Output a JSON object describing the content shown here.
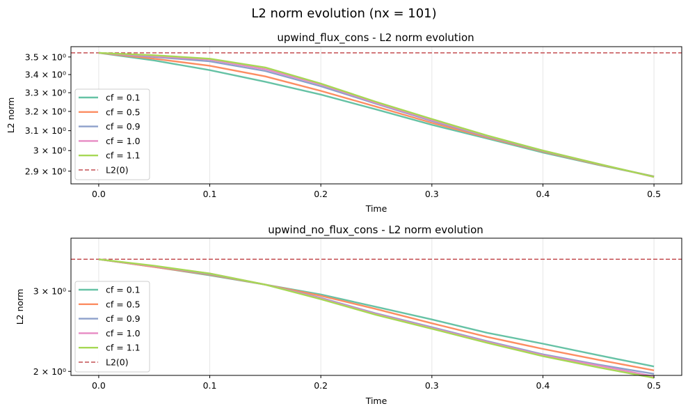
{
  "suptitle": "L2 norm evolution (nx = 101)",
  "colors": {
    "cf_0.1": "#66c2a5",
    "cf_0.5": "#fc8d62",
    "cf_0.9": "#8da0cb",
    "cf_1.0": "#e78ac3",
    "cf_1.1": "#a6d854",
    "ref": "#c44e52"
  },
  "chart_data": [
    {
      "type": "line",
      "title": "upwind_flux_cons - L2 norm evolution",
      "xlabel": "Time",
      "ylabel": "L2 norm",
      "yscale": "log",
      "xlim": [
        -0.025,
        0.525
      ],
      "ylim": [
        2.84,
        3.56
      ],
      "grid": "x-only",
      "legend_position": "lower-left",
      "x_ticks": [
        "0.0",
        "0.1",
        "0.2",
        "0.3",
        "0.4",
        "0.5"
      ],
      "x_tick_values": [
        0,
        0.1,
        0.2,
        0.3,
        0.4,
        0.5
      ],
      "y_ticks": [
        "2.9 × 10⁰",
        "3 × 10⁰",
        "3.1 × 10⁰",
        "3.2 × 10⁰",
        "3.3 × 10⁰",
        "3.4 × 10⁰",
        "3.5 × 10⁰"
      ],
      "y_tick_values": [
        2.9,
        3.0,
        3.1,
        3.2,
        3.3,
        3.4,
        3.5
      ],
      "reference": {
        "name": "L2(0)",
        "value": 3.524
      },
      "series": [
        {
          "name": "cf = 0.1",
          "x": [
            0,
            0.05,
            0.1,
            0.15,
            0.2,
            0.25,
            0.3,
            0.35,
            0.4,
            0.45,
            0.5
          ],
          "values": [
            3.524,
            3.48,
            3.425,
            3.36,
            3.29,
            3.21,
            3.13,
            3.06,
            2.99,
            2.93,
            2.875
          ]
        },
        {
          "name": "cf = 0.5",
          "x": [
            0,
            0.05,
            0.1,
            0.15,
            0.2,
            0.25,
            0.3,
            0.35,
            0.4,
            0.45,
            0.5
          ],
          "values": [
            3.524,
            3.49,
            3.45,
            3.39,
            3.31,
            3.225,
            3.14,
            3.065,
            2.995,
            2.932,
            2.875
          ]
        },
        {
          "name": "cf = 0.9",
          "x": [
            0,
            0.05,
            0.1,
            0.15,
            0.2,
            0.25,
            0.3,
            0.35,
            0.4,
            0.45,
            0.5
          ],
          "values": [
            3.524,
            3.5,
            3.475,
            3.42,
            3.335,
            3.24,
            3.15,
            3.07,
            2.998,
            2.934,
            2.874
          ]
        },
        {
          "name": "cf = 1.0",
          "x": [
            0,
            0.05,
            0.1,
            0.15,
            0.2,
            0.25,
            0.3,
            0.35,
            0.4,
            0.45,
            0.5
          ],
          "values": [
            3.524,
            3.505,
            3.485,
            3.43,
            3.345,
            3.245,
            3.155,
            3.073,
            3.0,
            2.935,
            2.872
          ]
        },
        {
          "name": "cf = 1.1",
          "x": [
            0,
            0.05,
            0.1,
            0.15,
            0.2,
            0.25,
            0.3,
            0.35,
            0.4,
            0.45,
            0.5
          ],
          "values": [
            3.524,
            3.51,
            3.49,
            3.44,
            3.35,
            3.25,
            3.16,
            3.075,
            3.0,
            2.935,
            2.873
          ]
        }
      ]
    },
    {
      "type": "line",
      "title": "upwind_no_flux_cons - L2 norm evolution",
      "xlabel": "Time",
      "ylabel": "L2 norm",
      "yscale": "log",
      "xlim": [
        -0.025,
        0.525
      ],
      "ylim": [
        1.96,
        3.92
      ],
      "grid": "x-only",
      "legend_position": "lower-left",
      "x_ticks": [
        "0.0",
        "0.1",
        "0.2",
        "0.3",
        "0.4",
        "0.5"
      ],
      "x_tick_values": [
        0,
        0.1,
        0.2,
        0.3,
        0.4,
        0.5
      ],
      "y_ticks": [
        "2 × 10⁰",
        "3 × 10⁰"
      ],
      "y_tick_values": [
        2,
        3
      ],
      "reference": {
        "name": "L2(0)",
        "value": 3.524
      },
      "series": [
        {
          "name": "cf = 0.1",
          "x": [
            0,
            0.05,
            0.1,
            0.15,
            0.2,
            0.25,
            0.3,
            0.35,
            0.4,
            0.45,
            0.5
          ],
          "values": [
            3.524,
            3.39,
            3.25,
            3.1,
            2.95,
            2.77,
            2.6,
            2.43,
            2.3,
            2.17,
            2.05
          ]
        },
        {
          "name": "cf = 0.5",
          "x": [
            0,
            0.05,
            0.1,
            0.15,
            0.2,
            0.25,
            0.3,
            0.35,
            0.4,
            0.45,
            0.5
          ],
          "values": [
            3.524,
            3.39,
            3.26,
            3.1,
            2.93,
            2.74,
            2.55,
            2.38,
            2.24,
            2.12,
            2.01
          ]
        },
        {
          "name": "cf = 0.9",
          "x": [
            0,
            0.05,
            0.1,
            0.15,
            0.2,
            0.25,
            0.3,
            0.35,
            0.4,
            0.45,
            0.5
          ],
          "values": [
            3.524,
            3.4,
            3.27,
            3.1,
            2.9,
            2.68,
            2.5,
            2.33,
            2.18,
            2.07,
            1.975
          ]
        },
        {
          "name": "cf = 1.0",
          "x": [
            0,
            0.05,
            0.1,
            0.15,
            0.2,
            0.25,
            0.3,
            0.35,
            0.4,
            0.45,
            0.5
          ],
          "values": [
            3.524,
            3.4,
            3.28,
            3.1,
            2.89,
            2.67,
            2.49,
            2.32,
            2.17,
            2.06,
            1.95
          ]
        },
        {
          "name": "cf = 1.1",
          "x": [
            0,
            0.05,
            0.1,
            0.15,
            0.2,
            0.25,
            0.3,
            0.35,
            0.4,
            0.45,
            0.5
          ],
          "values": [
            3.524,
            3.41,
            3.28,
            3.1,
            2.88,
            2.66,
            2.48,
            2.31,
            2.16,
            2.04,
            1.935
          ]
        }
      ]
    }
  ]
}
